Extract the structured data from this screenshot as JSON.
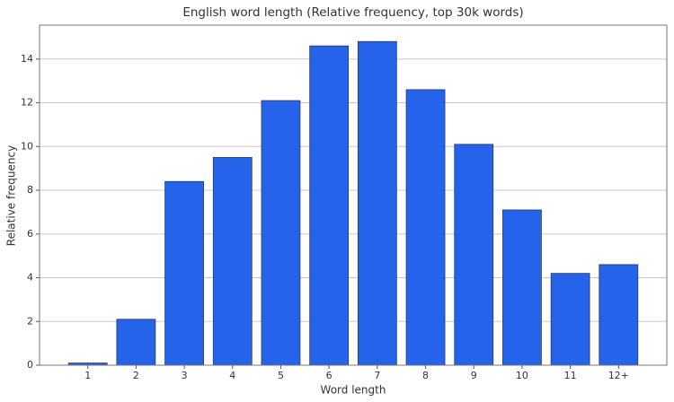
{
  "chart_data": {
    "type": "bar",
    "title": "English word length (Relative frequency, top 30k words)",
    "x_label": "Word length",
    "y_label": "Relative frequency",
    "categories": [
      "1",
      "2",
      "3",
      "4",
      "5",
      "6",
      "7",
      "8",
      "9",
      "10",
      "11",
      "12+"
    ],
    "values": [
      0.1,
      2.1,
      8.4,
      9.5,
      12.1,
      14.6,
      14.8,
      12.6,
      10.1,
      7.1,
      4.2,
      4.6
    ],
    "color": "#2563eb",
    "ylim": [
      0,
      15.55
    ],
    "yticks": [
      0,
      2,
      4,
      6,
      8,
      10,
      12,
      14
    ],
    "grid": true
  }
}
